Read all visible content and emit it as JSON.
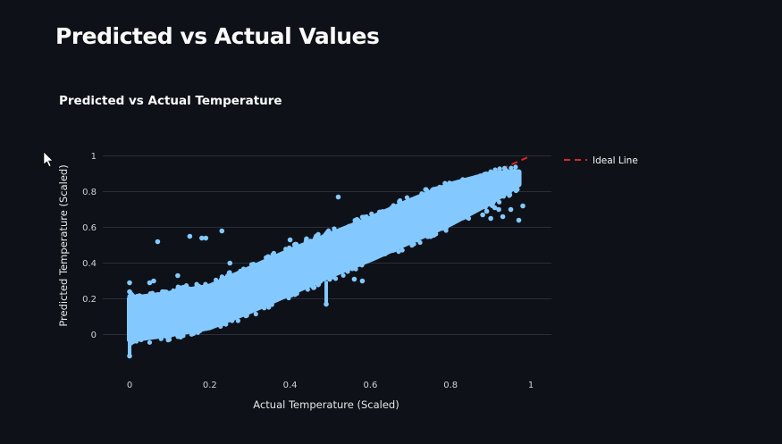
{
  "page": {
    "title": "Predicted vs Actual Values"
  },
  "chart_data": {
    "type": "scatter",
    "title": "Predicted vs Actual Temperature",
    "xlabel": "Actual Temperature (Scaled)",
    "ylabel": "Predicted Temperature (Scaled)",
    "xlim": [
      -0.03,
      1.03
    ],
    "ylim": [
      -0.15,
      1.0
    ],
    "x_ticks": [
      "0",
      "0.2",
      "0.4",
      "0.6",
      "0.8",
      "1"
    ],
    "y_ticks": [
      "0",
      "0.2",
      "0.4",
      "0.6",
      "0.8",
      "1"
    ],
    "grid": true,
    "legend": {
      "placement": "top-right",
      "entries": [
        "Ideal Line"
      ]
    },
    "colors": {
      "background": "#0e1117",
      "points": "#83c9ff",
      "ideal_line": "#d62728",
      "grid": "#2a2e36"
    },
    "series": [
      {
        "type": "scatter-band",
        "description_of_mass": "dense point cloud",
        "x": [
          0,
          0.1,
          0.2,
          0.3,
          0.4,
          0.5,
          0.6,
          0.7,
          0.8,
          0.9,
          0.97
        ],
        "y_upper": [
          0.2,
          0.23,
          0.27,
          0.37,
          0.47,
          0.56,
          0.65,
          0.75,
          0.84,
          0.9,
          0.91
        ],
        "y_lower": [
          -0.03,
          0.0,
          0.04,
          0.13,
          0.23,
          0.33,
          0.42,
          0.52,
          0.62,
          0.74,
          0.84
        ]
      },
      {
        "type": "scatter",
        "x": [
          0,
          0,
          0,
          0.05,
          0.07,
          0.15,
          0.18,
          0.19,
          0.23,
          0.25,
          0.4,
          0.52,
          0.49,
          0.56,
          0.58,
          0.85,
          0.88,
          0.89,
          0.9,
          0.91,
          0.92,
          0.95,
          0.98,
          0.93,
          0.97,
          0.06,
          0.12
        ],
        "y": [
          0.29,
          0.24,
          -0.12,
          0.29,
          0.52,
          0.55,
          0.54,
          0.54,
          0.58,
          0.4,
          0.53,
          0.77,
          0.17,
          0.31,
          0.3,
          0.72,
          0.67,
          0.69,
          0.65,
          0.71,
          0.7,
          0.7,
          0.72,
          0.66,
          0.64,
          0.3,
          0.33
        ]
      },
      {
        "name": "Ideal Line",
        "type": "line",
        "dash": "dash",
        "x": [
          0,
          1
        ],
        "y": [
          0,
          1
        ]
      }
    ]
  }
}
